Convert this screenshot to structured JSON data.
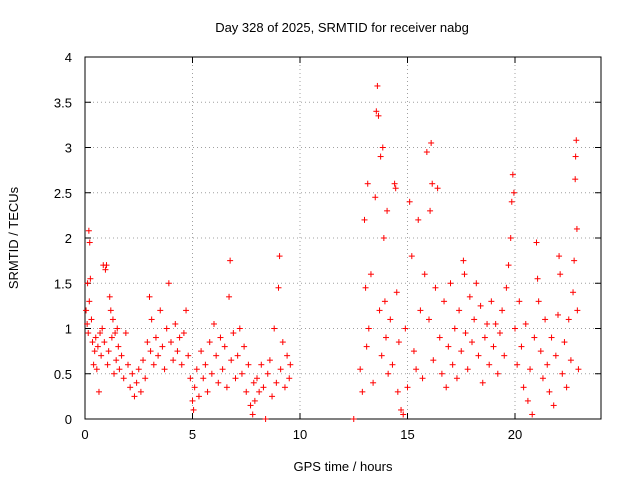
{
  "chart_data": {
    "type": "scatter",
    "title": "Day 328 of 2025, SRMTID for receiver nabg",
    "xlabel": "GPS time / hours",
    "ylabel": "SRMTID / TECUs",
    "xlim": [
      0,
      24
    ],
    "ylim": [
      0,
      4
    ],
    "x_ticks": [
      0,
      5,
      10,
      15,
      20
    ],
    "x_tick_labels": [
      "0",
      "5",
      "10",
      "15",
      "20"
    ],
    "y_ticks": [
      0,
      0.5,
      1,
      1.5,
      2,
      2.5,
      3,
      3.5,
      4
    ],
    "y_tick_labels": [
      "0",
      "0.5",
      "1",
      "1.5",
      "2",
      "2.5",
      "3",
      "3.5",
      "4"
    ],
    "grid": true,
    "marker": "+",
    "color": "#ff0000",
    "series": [
      {
        "name": "SRMTID",
        "points": [
          [
            0.05,
            1.2
          ],
          [
            0.1,
            1.05
          ],
          [
            0.12,
            1.5
          ],
          [
            0.15,
            0.95
          ],
          [
            0.18,
            2.08
          ],
          [
            0.2,
            1.3
          ],
          [
            0.22,
            1.95
          ],
          [
            0.25,
            1.55
          ],
          [
            0.3,
            1.1
          ],
          [
            0.35,
            0.85
          ],
          [
            0.4,
            0.6
          ],
          [
            0.45,
            0.75
          ],
          [
            0.5,
            0.9
          ],
          [
            0.55,
            0.55
          ],
          [
            0.6,
            0.8
          ],
          [
            0.65,
            0.3
          ],
          [
            0.7,
            0.95
          ],
          [
            0.75,
            0.7
          ],
          [
            0.8,
            1.0
          ],
          [
            0.85,
            1.7
          ],
          [
            0.9,
            0.85
          ],
          [
            0.95,
            1.65
          ],
          [
            1.0,
            1.7
          ],
          [
            1.05,
            0.6
          ],
          [
            1.1,
            0.75
          ],
          [
            1.15,
            1.35
          ],
          [
            1.2,
            1.2
          ],
          [
            1.25,
            0.9
          ],
          [
            1.3,
            1.1
          ],
          [
            1.35,
            0.5
          ],
          [
            1.4,
            0.95
          ],
          [
            1.45,
            0.65
          ],
          [
            1.5,
            1.0
          ],
          [
            1.55,
            0.8
          ],
          [
            1.6,
            0.55
          ],
          [
            1.7,
            0.7
          ],
          [
            1.8,
            0.45
          ],
          [
            1.9,
            0.95
          ],
          [
            2.0,
            0.6
          ],
          [
            2.1,
            0.35
          ],
          [
            2.2,
            0.5
          ],
          [
            2.3,
            0.25
          ],
          [
            2.4,
            0.4
          ],
          [
            2.5,
            0.55
          ],
          [
            2.6,
            0.3
          ],
          [
            2.7,
            0.65
          ],
          [
            2.8,
            0.45
          ],
          [
            2.9,
            0.85
          ],
          [
            3.0,
            1.35
          ],
          [
            3.05,
            0.75
          ],
          [
            3.1,
            1.1
          ],
          [
            3.2,
            0.6
          ],
          [
            3.3,
            0.9
          ],
          [
            3.4,
            0.7
          ],
          [
            3.5,
            1.2
          ],
          [
            3.6,
            0.8
          ],
          [
            3.7,
            0.55
          ],
          [
            3.8,
            1.0
          ],
          [
            3.9,
            1.5
          ],
          [
            4.0,
            0.85
          ],
          [
            4.1,
            0.65
          ],
          [
            4.2,
            1.05
          ],
          [
            4.3,
            0.75
          ],
          [
            4.4,
            0.9
          ],
          [
            4.5,
            0.6
          ],
          [
            4.6,
            0.95
          ],
          [
            4.7,
            1.2
          ],
          [
            4.8,
            0.7
          ],
          [
            4.9,
            0.45
          ],
          [
            5.0,
            0.2
          ],
          [
            5.05,
            0.1
          ],
          [
            5.1,
            0.35
          ],
          [
            5.2,
            0.55
          ],
          [
            5.3,
            0.25
          ],
          [
            5.4,
            0.75
          ],
          [
            5.5,
            0.45
          ],
          [
            5.6,
            0.6
          ],
          [
            5.7,
            0.3
          ],
          [
            5.8,
            0.85
          ],
          [
            5.9,
            0.5
          ],
          [
            6.0,
            1.05
          ],
          [
            6.1,
            0.7
          ],
          [
            6.2,
            0.4
          ],
          [
            6.3,
            0.9
          ],
          [
            6.4,
            0.55
          ],
          [
            6.5,
            0.8
          ],
          [
            6.6,
            0.35
          ],
          [
            6.7,
            1.35
          ],
          [
            6.75,
            1.75
          ],
          [
            6.8,
            0.65
          ],
          [
            6.9,
            0.95
          ],
          [
            7.0,
            0.45
          ],
          [
            7.1,
            0.7
          ],
          [
            7.2,
            1.0
          ],
          [
            7.3,
            0.5
          ],
          [
            7.4,
            0.8
          ],
          [
            7.5,
            0.3
          ],
          [
            7.6,
            0.6
          ],
          [
            7.7,
            0.15
          ],
          [
            7.8,
            0.05
          ],
          [
            7.85,
            0.4
          ],
          [
            7.9,
            0.2
          ],
          [
            8.0,
            0.45
          ],
          [
            8.1,
            0.3
          ],
          [
            8.2,
            0.6
          ],
          [
            8.3,
            0.35
          ],
          [
            8.4,
            0.0
          ],
          [
            8.5,
            0.5
          ],
          [
            8.6,
            0.65
          ],
          [
            8.7,
            0.25
          ],
          [
            8.8,
            1.0
          ],
          [
            8.9,
            0.4
          ],
          [
            9.0,
            1.45
          ],
          [
            9.05,
            1.8
          ],
          [
            9.1,
            0.55
          ],
          [
            9.2,
            0.85
          ],
          [
            9.3,
            0.35
          ],
          [
            9.4,
            0.7
          ],
          [
            9.5,
            0.45
          ],
          [
            9.55,
            0.6
          ],
          [
            12.5,
            0.0
          ],
          [
            12.8,
            0.55
          ],
          [
            12.9,
            0.3
          ],
          [
            13.0,
            2.2
          ],
          [
            13.05,
            1.45
          ],
          [
            13.1,
            0.8
          ],
          [
            13.15,
            2.6
          ],
          [
            13.2,
            1.0
          ],
          [
            13.3,
            1.6
          ],
          [
            13.4,
            0.4
          ],
          [
            13.5,
            2.45
          ],
          [
            13.55,
            3.4
          ],
          [
            13.6,
            3.68
          ],
          [
            13.65,
            3.35
          ],
          [
            13.7,
            1.2
          ],
          [
            13.75,
            2.9
          ],
          [
            13.8,
            0.7
          ],
          [
            13.85,
            3.0
          ],
          [
            13.9,
            2.0
          ],
          [
            13.95,
            1.3
          ],
          [
            14.0,
            0.9
          ],
          [
            14.05,
            2.3
          ],
          [
            14.1,
            0.5
          ],
          [
            14.2,
            1.1
          ],
          [
            14.3,
            0.6
          ],
          [
            14.4,
            2.6
          ],
          [
            14.45,
            2.55
          ],
          [
            14.5,
            1.4
          ],
          [
            14.55,
            0.3
          ],
          [
            14.6,
            0.85
          ],
          [
            14.7,
            0.1
          ],
          [
            14.8,
            0.05
          ],
          [
            14.9,
            1.0
          ],
          [
            15.0,
            0.35
          ],
          [
            15.1,
            2.4
          ],
          [
            15.2,
            1.8
          ],
          [
            15.3,
            0.75
          ],
          [
            15.4,
            0.55
          ],
          [
            15.5,
            2.2
          ],
          [
            15.6,
            1.2
          ],
          [
            15.7,
            0.45
          ],
          [
            15.8,
            1.6
          ],
          [
            15.9,
            2.95
          ],
          [
            16.0,
            1.1
          ],
          [
            16.05,
            2.3
          ],
          [
            16.1,
            3.05
          ],
          [
            16.15,
            2.6
          ],
          [
            16.2,
            0.65
          ],
          [
            16.3,
            1.45
          ],
          [
            16.4,
            2.55
          ],
          [
            16.5,
            0.9
          ],
          [
            16.6,
            0.5
          ],
          [
            16.7,
            1.3
          ],
          [
            16.8,
            0.35
          ],
          [
            16.9,
            0.8
          ],
          [
            17.0,
            1.5
          ],
          [
            17.1,
            0.6
          ],
          [
            17.2,
            1.0
          ],
          [
            17.3,
            0.45
          ],
          [
            17.4,
            1.2
          ],
          [
            17.5,
            0.75
          ],
          [
            17.6,
            1.75
          ],
          [
            17.65,
            1.6
          ],
          [
            17.7,
            0.95
          ],
          [
            17.8,
            0.55
          ],
          [
            17.9,
            1.35
          ],
          [
            18.0,
            0.85
          ],
          [
            18.1,
            1.1
          ],
          [
            18.2,
            1.5
          ],
          [
            18.3,
            0.7
          ],
          [
            18.4,
            1.25
          ],
          [
            18.5,
            0.4
          ],
          [
            18.6,
            0.9
          ],
          [
            18.7,
            1.05
          ],
          [
            18.8,
            0.6
          ],
          [
            18.9,
            1.3
          ],
          [
            19.0,
            0.8
          ],
          [
            19.1,
            1.05
          ],
          [
            19.2,
            0.5
          ],
          [
            19.3,
            0.95
          ],
          [
            19.4,
            1.2
          ],
          [
            19.5,
            0.7
          ],
          [
            19.6,
            1.45
          ],
          [
            19.7,
            1.7
          ],
          [
            19.8,
            2.0
          ],
          [
            19.85,
            2.4
          ],
          [
            19.9,
            2.7
          ],
          [
            19.95,
            2.5
          ],
          [
            20.0,
            1.0
          ],
          [
            20.1,
            0.6
          ],
          [
            20.2,
            1.3
          ],
          [
            20.3,
            0.8
          ],
          [
            20.4,
            0.35
          ],
          [
            20.5,
            1.05
          ],
          [
            20.6,
            0.2
          ],
          [
            20.7,
            0.55
          ],
          [
            20.8,
            0.05
          ],
          [
            20.9,
            0.9
          ],
          [
            21.0,
            1.95
          ],
          [
            21.05,
            1.55
          ],
          [
            21.1,
            1.3
          ],
          [
            21.2,
            0.75
          ],
          [
            21.3,
            0.45
          ],
          [
            21.4,
            1.1
          ],
          [
            21.5,
            0.6
          ],
          [
            21.6,
            0.3
          ],
          [
            21.7,
            0.9
          ],
          [
            21.8,
            0.15
          ],
          [
            21.9,
            0.7
          ],
          [
            22.0,
            1.15
          ],
          [
            22.05,
            1.8
          ],
          [
            22.1,
            1.6
          ],
          [
            22.2,
            0.5
          ],
          [
            22.3,
            0.85
          ],
          [
            22.4,
            0.35
          ],
          [
            22.5,
            1.1
          ],
          [
            22.6,
            0.65
          ],
          [
            22.7,
            1.4
          ],
          [
            22.75,
            1.75
          ],
          [
            22.8,
            2.65
          ],
          [
            22.82,
            2.9
          ],
          [
            22.85,
            3.08
          ],
          [
            22.88,
            2.1
          ],
          [
            22.9,
            1.2
          ],
          [
            22.95,
            0.55
          ]
        ]
      }
    ]
  }
}
